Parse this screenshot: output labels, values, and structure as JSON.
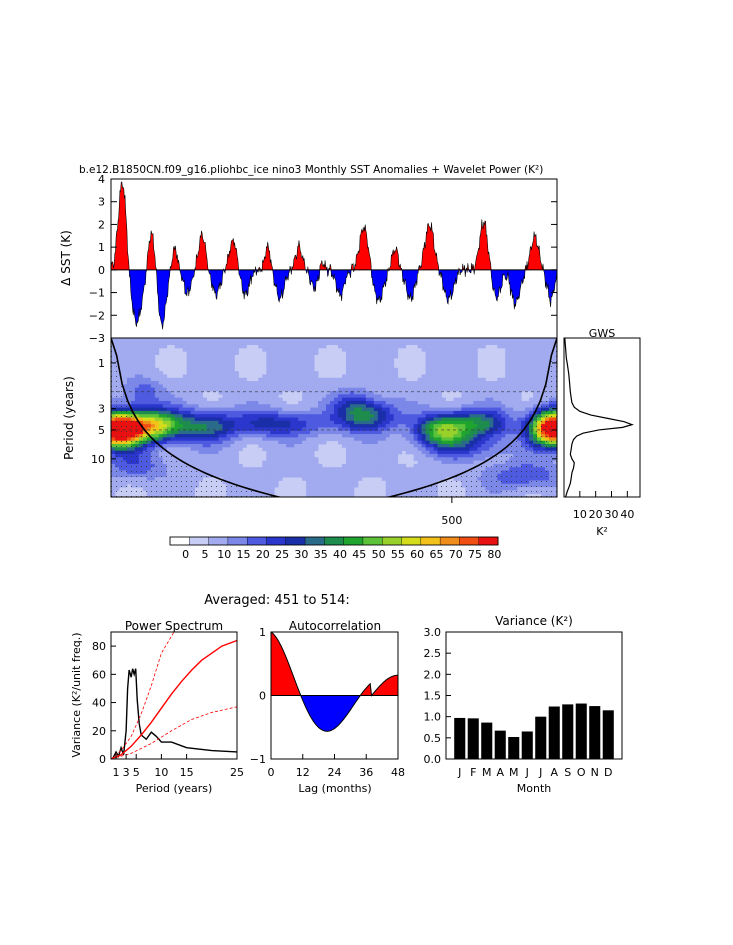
{
  "title": "b.e12.B1850CN.f09_g16.pliohbc_ice nino3 Monthly SST Anomalies + Wavelet Power (K²)",
  "colors": {
    "positive": "#ff0000",
    "negative": "#0000ff",
    "coi": "#000000"
  },
  "chart_data": [
    {
      "name": "sst_anomaly",
      "type": "area",
      "ylabel": "Δ SST (K)",
      "ylim": [
        -3,
        4
      ],
      "yticks": [
        "4",
        "3",
        "2",
        "1",
        "0",
        "−1",
        "−2",
        "−3"
      ],
      "x_range_months": [
        0,
        700
      ],
      "events": [
        {
          "t": 18,
          "amp": 4.0,
          "w": 9
        },
        {
          "t": 64,
          "amp": 1.8,
          "w": 8
        },
        {
          "t": 100,
          "amp": 1.0,
          "w": 6
        },
        {
          "t": 143,
          "amp": 1.5,
          "w": 8
        },
        {
          "t": 192,
          "amp": 1.3,
          "w": 9
        },
        {
          "t": 246,
          "amp": 1.1,
          "w": 6
        },
        {
          "t": 295,
          "amp": 1.0,
          "w": 8
        },
        {
          "t": 330,
          "amp": 0.5,
          "w": 6
        },
        {
          "t": 397,
          "amp": 1.9,
          "w": 10
        },
        {
          "t": 446,
          "amp": 1.0,
          "w": 7
        },
        {
          "t": 500,
          "amp": 2.0,
          "w": 10
        },
        {
          "t": 585,
          "amp": 2.1,
          "w": 9
        },
        {
          "t": 665,
          "amp": 1.5,
          "w": 9
        },
        {
          "t": 40,
          "amp": -2.3,
          "w": 13
        },
        {
          "t": 80,
          "amp": -2.5,
          "w": 9
        },
        {
          "t": 120,
          "amp": -1.0,
          "w": 9
        },
        {
          "t": 165,
          "amp": -1.0,
          "w": 10
        },
        {
          "t": 210,
          "amp": -1.1,
          "w": 10
        },
        {
          "t": 265,
          "amp": -1.2,
          "w": 10
        },
        {
          "t": 320,
          "amp": -0.8,
          "w": 10
        },
        {
          "t": 360,
          "amp": -1.1,
          "w": 9
        },
        {
          "t": 420,
          "amp": -1.4,
          "w": 11
        },
        {
          "t": 470,
          "amp": -1.2,
          "w": 10
        },
        {
          "t": 530,
          "amp": -1.3,
          "w": 11
        },
        {
          "t": 605,
          "amp": -1.2,
          "w": 10
        },
        {
          "t": 635,
          "amp": -1.5,
          "w": 10
        },
        {
          "t": 690,
          "amp": -1.3,
          "w": 8
        }
      ]
    },
    {
      "name": "wavelet_power",
      "type": "heatmap",
      "ylabel": "Period (years)",
      "period_range_years": [
        0.55,
        25
      ],
      "period_ticks": [
        "1",
        "3",
        "5",
        "10"
      ],
      "period_tick_values": [
        1,
        3,
        5,
        10
      ],
      "x_ticks": [
        "500"
      ],
      "x_tick_values": [
        535
      ],
      "levels": [
        0,
        5,
        10,
        15,
        20,
        25,
        30,
        35,
        40,
        45,
        50,
        55,
        60,
        65,
        70,
        75,
        80
      ],
      "level_labels": [
        "0",
        "5",
        "10",
        "15",
        "20",
        "25",
        "30",
        "35",
        "40",
        "45",
        "50",
        "55",
        "60",
        "65",
        "70",
        "75",
        "80"
      ],
      "level_colors": [
        "#ffffff",
        "#c8cdf5",
        "#a2abef",
        "#7c88e8",
        "#4e5be0",
        "#2a36cc",
        "#1a2ea8",
        "#2a6b8a",
        "#1e8c4c",
        "#1fa52f",
        "#5cc23a",
        "#98d12a",
        "#d4dc1c",
        "#f2c21a",
        "#f08c1a",
        "#f04e12",
        "#e81010"
      ],
      "blobs": [
        {
          "t": 10,
          "p": 5.0,
          "amp": 90,
          "st": 40,
          "sp": 0.13
        },
        {
          "t": 70,
          "p": 4.5,
          "amp": 48,
          "st": 45,
          "sp": 0.12
        },
        {
          "t": 150,
          "p": 4.6,
          "amp": 26,
          "st": 45,
          "sp": 0.12
        },
        {
          "t": 260,
          "p": 4.3,
          "amp": 22,
          "st": 70,
          "sp": 0.1
        },
        {
          "t": 400,
          "p": 3.6,
          "amp": 32,
          "st": 45,
          "sp": 0.12
        },
        {
          "t": 520,
          "p": 5.0,
          "amp": 42,
          "st": 40,
          "sp": 0.12
        },
        {
          "t": 580,
          "p": 4.3,
          "amp": 28,
          "st": 45,
          "sp": 0.11
        },
        {
          "t": 695,
          "p": 4.8,
          "amp": 90,
          "st": 35,
          "sp": 0.13
        },
        {
          "t": 50,
          "p": 2.0,
          "amp": 12,
          "st": 30,
          "sp": 0.1
        },
        {
          "t": 380,
          "p": 2.5,
          "amp": 10,
          "st": 30,
          "sp": 0.1
        },
        {
          "t": 560,
          "p": 7.5,
          "amp": 14,
          "st": 60,
          "sp": 0.1
        },
        {
          "t": 40,
          "p": 12.0,
          "amp": 12,
          "st": 50,
          "sp": 0.1
        },
        {
          "t": 650,
          "p": 15.0,
          "amp": 14,
          "st": 60,
          "sp": 0.1
        }
      ]
    },
    {
      "name": "global_wavelet_spectrum",
      "type": "line",
      "title": "GWS",
      "xlabel": "K²",
      "xticks": [
        "10",
        "20",
        "30",
        "40"
      ],
      "xtick_values": [
        10,
        20,
        30,
        40
      ],
      "xlim": [
        0,
        48
      ],
      "period": [
        0.55,
        0.7,
        0.9,
        1.0,
        1.3,
        1.6,
        2.0,
        2.3,
        2.6,
        2.9,
        3.2,
        3.5,
        3.8,
        4.1,
        4.4,
        4.7,
        5.0,
        5.4,
        5.8,
        6.3,
        7.0,
        8.0,
        9.0,
        10.0,
        11.0,
        12.5,
        14.0,
        16.0,
        18.0,
        20.0,
        22.0,
        25.0
      ],
      "power": [
        0.5,
        1.0,
        1.5,
        2.0,
        3.0,
        3.5,
        4.0,
        4.5,
        5.0,
        6.5,
        10.0,
        17.0,
        28.0,
        38.0,
        43.0,
        37.0,
        22.0,
        12.0,
        8.0,
        6.0,
        5.0,
        4.5,
        4.0,
        5.0,
        6.5,
        6.0,
        5.0,
        4.5,
        4.0,
        3.0,
        2.0,
        1.0
      ]
    },
    {
      "name": "power_spectrum",
      "type": "line",
      "title": "Power Spectrum",
      "subtitle": "Averaged: 451 to 514:",
      "ylabel": "Variance (K²/unit freq.)",
      "xlabel": "Period (years)",
      "xlim": [
        0,
        25
      ],
      "ylim": [
        0,
        90
      ],
      "xticks": [
        "1",
        "3",
        "5",
        "10",
        "15",
        "25"
      ],
      "xtick_values": [
        1,
        3,
        5,
        10,
        15,
        25
      ],
      "yticks": [
        "0",
        "20",
        "40",
        "60",
        "80"
      ],
      "ytick_values": [
        0,
        20,
        40,
        60,
        80
      ],
      "series": [
        {
          "role": "spectrum",
          "color": "#000000",
          "x": [
            0.3,
            1.0,
            1.5,
            2.0,
            2.5,
            3.0,
            3.3,
            3.6,
            4.0,
            4.3,
            4.6,
            4.9,
            5.2,
            5.6,
            6.0,
            7.0,
            8.0,
            9.0,
            10.0,
            12.0,
            15.0,
            20.0,
            25.0
          ],
          "y": [
            0,
            5,
            2,
            8,
            3,
            20,
            50,
            63,
            58,
            64,
            60,
            64,
            42,
            25,
            17,
            14,
            19,
            16,
            12,
            12,
            8,
            6,
            5
          ]
        },
        {
          "role": "red_noise",
          "color": "#ff0000",
          "x": [
            0,
            2,
            4,
            6,
            8,
            10,
            12,
            14,
            16,
            18,
            20,
            22,
            25
          ],
          "y": [
            0,
            3,
            9,
            17,
            26,
            36,
            46,
            55,
            63,
            70,
            75,
            80,
            84
          ]
        },
        {
          "role": "upper_bound",
          "color": "#ff0000",
          "dash": true,
          "x": [
            0,
            2,
            4,
            6,
            8,
            10,
            12.5
          ],
          "y": [
            0,
            6,
            16,
            32,
            52,
            75,
            90
          ]
        },
        {
          "role": "lower_bound",
          "color": "#ff0000",
          "dash": true,
          "x": [
            0,
            4,
            8,
            12,
            16,
            20,
            25
          ],
          "y": [
            0,
            4,
            11,
            20,
            28,
            33,
            37
          ]
        }
      ]
    },
    {
      "name": "autocorrelation",
      "type": "area",
      "title": "Autocorrelation",
      "xlabel": "Lag (months)",
      "xlim": [
        0,
        48
      ],
      "ylim": [
        -1,
        1
      ],
      "xticks": [
        "0",
        "12",
        "24",
        "36",
        "48"
      ],
      "xtick_values": [
        0,
        12,
        24,
        36,
        48
      ],
      "yticks": [
        "1",
        "0",
        "−1"
      ],
      "ytick_values": [
        1,
        0,
        -1
      ]
    },
    {
      "name": "monthly_variance",
      "type": "bar",
      "title": "Variance (K²)",
      "xlabel": "Month",
      "categories": [
        "J",
        "F",
        "M",
        "A",
        "M",
        "J",
        "J",
        "A",
        "S",
        "O",
        "N",
        "D"
      ],
      "values": [
        0.97,
        0.96,
        0.86,
        0.67,
        0.52,
        0.65,
        1.0,
        1.24,
        1.29,
        1.31,
        1.25,
        1.15
      ],
      "ylim": [
        0,
        3.0
      ],
      "yticks": [
        "0.0",
        "0.5",
        "1.0",
        "1.5",
        "2.0",
        "2.5",
        "3.0"
      ],
      "ytick_values": [
        0,
        0.5,
        1.0,
        1.5,
        2.0,
        2.5,
        3.0
      ],
      "bar_color": "#000000"
    }
  ]
}
